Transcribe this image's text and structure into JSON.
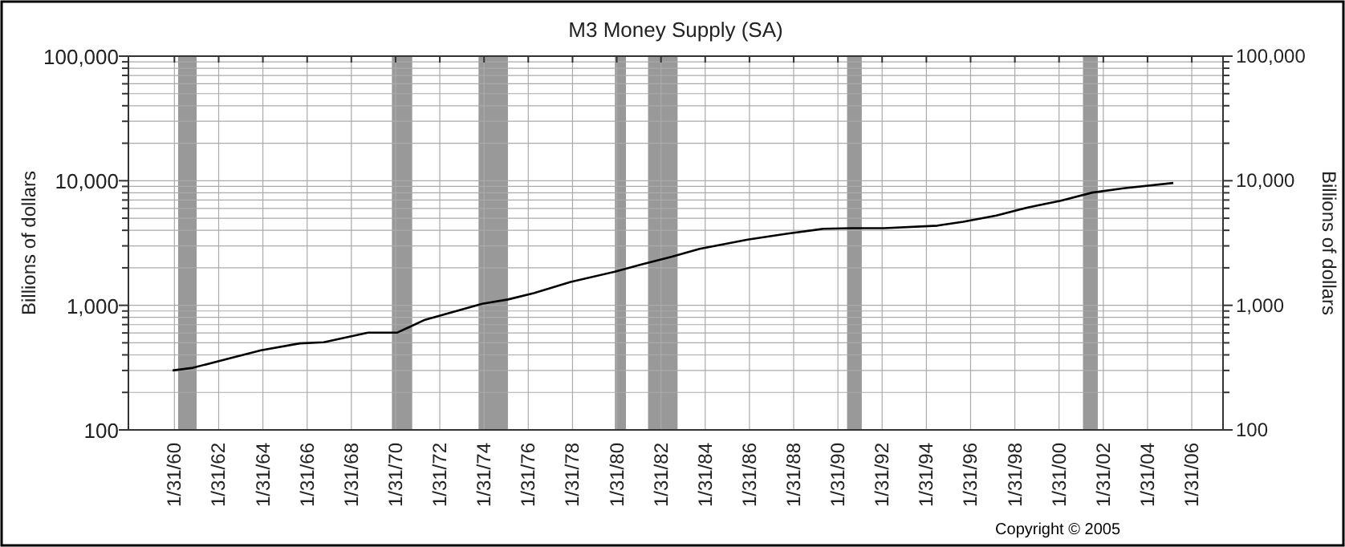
{
  "chart_data": {
    "type": "line",
    "title": "M3 Money Supply (SA)",
    "ylabel": "Billions of dollars",
    "y2label": "Billions of dollars",
    "annotations": [
      "Copyright © 2005"
    ],
    "x": [
      "1960-01",
      "1960-12",
      "1962-08",
      "1964-01",
      "1965-10",
      "1966-11",
      "1968-11",
      "1970-03",
      "1971-06",
      "1974-01",
      "1975-03",
      "1976-05",
      "1978-01",
      "1980-01",
      "1981-03",
      "1982-08",
      "1983-11",
      "1986-01",
      "1987-10",
      "1989-06",
      "1990-09",
      "1992-03",
      "1994-08",
      "1995-10",
      "1997-04",
      "1998-09",
      "2000-03",
      "2001-08",
      "2003-01",
      "2005-04"
    ],
    "series": [
      {
        "color": "#000000",
        "values": [
          300,
          315,
          376,
          436,
          495,
          505,
          604,
          604,
          766,
          1030,
          1114,
          1254,
          1542,
          1862,
          2118,
          2454,
          2844,
          3368,
          3750,
          4110,
          4160,
          4160,
          4360,
          4680,
          5250,
          6100,
          6920,
          8030,
          8700,
          9600
        ]
      }
    ],
    "bands": [
      {
        "axis": "x",
        "from": "1960-04",
        "to": "1961-02",
        "color": "#999999"
      },
      {
        "axis": "x",
        "from": "1969-12",
        "to": "1970-11",
        "color": "#999999"
      },
      {
        "axis": "x",
        "from": "1973-11",
        "to": "1975-03",
        "color": "#999999"
      },
      {
        "axis": "x",
        "from": "1980-01",
        "to": "1980-07",
        "color": "#999999"
      },
      {
        "axis": "x",
        "from": "1981-07",
        "to": "1982-11",
        "color": "#999999"
      },
      {
        "axis": "x",
        "from": "1990-07",
        "to": "1991-03",
        "color": "#999999"
      },
      {
        "axis": "x",
        "from": "2001-03",
        "to": "2001-11",
        "color": "#999999"
      }
    ],
    "xlim": [
      "1958-01",
      "2007-07"
    ],
    "xticks": [
      {
        "value": "1960-01-31",
        "label": "1/31/60"
      },
      {
        "value": "1962-01-31",
        "label": "1/31/62"
      },
      {
        "value": "1964-01-31",
        "label": "1/31/64"
      },
      {
        "value": "1966-01-31",
        "label": "1/31/66"
      },
      {
        "value": "1968-01-31",
        "label": "1/31/68"
      },
      {
        "value": "1970-01-31",
        "label": "1/31/70"
      },
      {
        "value": "1972-01-31",
        "label": "1/31/72"
      },
      {
        "value": "1974-01-31",
        "label": "1/31/74"
      },
      {
        "value": "1976-01-31",
        "label": "1/31/76"
      },
      {
        "value": "1978-01-31",
        "label": "1/31/78"
      },
      {
        "value": "1980-01-31",
        "label": "1/31/80"
      },
      {
        "value": "1982-01-31",
        "label": "1/31/82"
      },
      {
        "value": "1984-01-31",
        "label": "1/31/84"
      },
      {
        "value": "1986-01-31",
        "label": "1/31/86"
      },
      {
        "value": "1988-01-31",
        "label": "1/31/88"
      },
      {
        "value": "1990-01-31",
        "label": "1/31/90"
      },
      {
        "value": "1992-01-31",
        "label": "1/31/92"
      },
      {
        "value": "1994-01-31",
        "label": "1/31/94"
      },
      {
        "value": "1996-01-31",
        "label": "1/31/96"
      },
      {
        "value": "1998-01-31",
        "label": "1/31/98"
      },
      {
        "value": "2000-01-31",
        "label": "1/31/00"
      },
      {
        "value": "2002-01-31",
        "label": "1/31/02"
      },
      {
        "value": "2004-01-31",
        "label": "1/31/04"
      },
      {
        "value": "2006-01-31",
        "label": "1/31/06"
      }
    ],
    "log": true,
    "ylim": [
      100,
      100000
    ],
    "yticks": [
      {
        "value": 100,
        "label": "100"
      },
      {
        "value": 200,
        "label": null
      },
      {
        "value": 300,
        "label": null
      },
      {
        "value": 400,
        "label": null
      },
      {
        "value": 500,
        "label": null
      },
      {
        "value": 600,
        "label": null
      },
      {
        "value": 700,
        "label": null
      },
      {
        "value": 800,
        "label": null
      },
      {
        "value": 900,
        "label": null
      },
      {
        "value": 1000,
        "label": "1,000"
      },
      {
        "value": 2000,
        "label": null
      },
      {
        "value": 3000,
        "label": null
      },
      {
        "value": 4000,
        "label": null
      },
      {
        "value": 5000,
        "label": null
      },
      {
        "value": 6000,
        "label": null
      },
      {
        "value": 7000,
        "label": null
      },
      {
        "value": 8000,
        "label": null
      },
      {
        "value": 9000,
        "label": null
      },
      {
        "value": 10000,
        "label": "10,000"
      },
      {
        "value": 20000,
        "label": null
      },
      {
        "value": 30000,
        "label": null
      },
      {
        "value": 40000,
        "label": null
      },
      {
        "value": 50000,
        "label": null
      },
      {
        "value": 60000,
        "label": null
      },
      {
        "value": 70000,
        "label": null
      },
      {
        "value": 80000,
        "label": null
      },
      {
        "value": 90000,
        "label": null
      },
      {
        "value": 100000,
        "label": "100,000"
      }
    ],
    "grid": true,
    "marker": "none",
    "line_style": "solid"
  }
}
